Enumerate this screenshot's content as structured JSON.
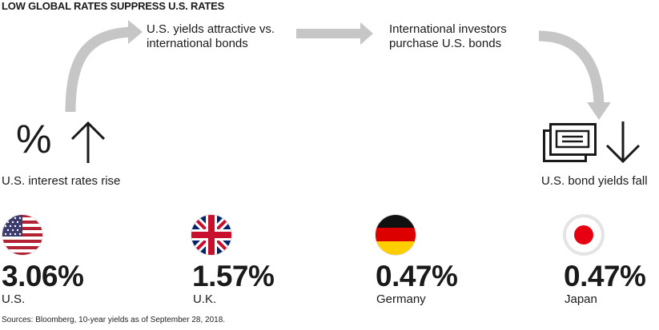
{
  "title": "LOW GLOBAL RATES SUPPRESS U.S. RATES",
  "flow": {
    "step1": "U.S. interest rates rise",
    "step2_line1": "U.S. yields attractive vs.",
    "step2_line2": "international bonds",
    "step3_line1": "International investors",
    "step3_line2": "purchase U.S. bonds",
    "step4": "U.S. bond yields fall",
    "percent_symbol": "%"
  },
  "yields": [
    {
      "country": "U.S.",
      "value": "3.06%",
      "flag": "us-flag-icon"
    },
    {
      "country": "U.K.",
      "value": "1.57%",
      "flag": "uk-flag-icon"
    },
    {
      "country": "Germany",
      "value": "0.47%",
      "flag": "germany-flag-icon"
    },
    {
      "country": "Japan",
      "value": "0.47%",
      "flag": "japan-flag-icon"
    }
  ],
  "colors": {
    "arrow_gray": "#c6c6c6",
    "text": "#1a1a1a"
  },
  "source": "Sources: Bloomberg, 10-year yields as of September 28, 2018."
}
